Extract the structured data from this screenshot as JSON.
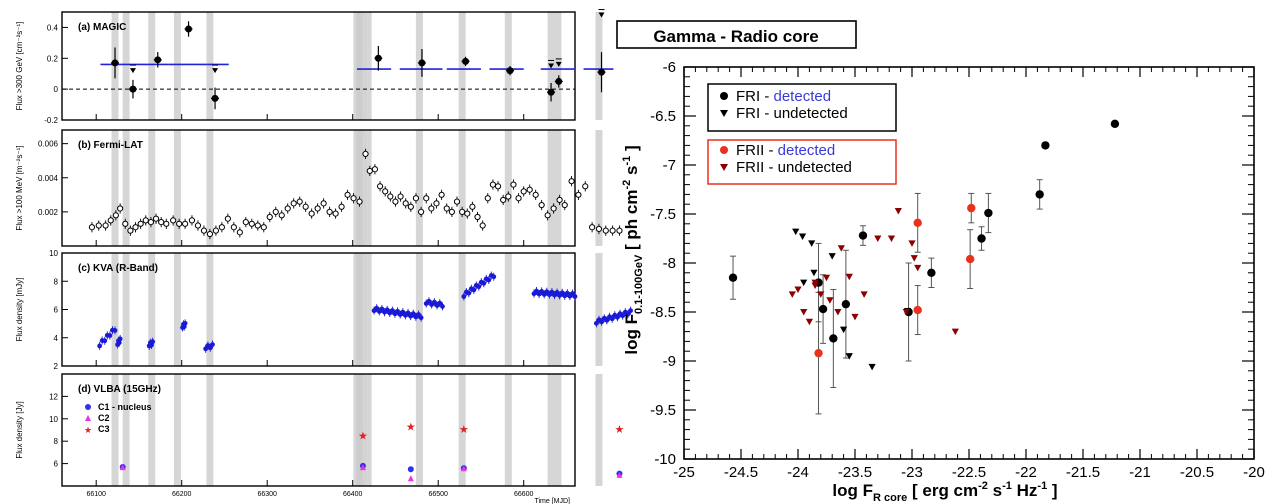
{
  "chart_data": [
    {
      "type": "scatter",
      "description_panels": "Multi-wavelength light curve",
      "x_axis": {
        "label": "Time [MJD]",
        "range": [
          66060,
          66660
        ],
        "ticks": [
          66100,
          66200,
          66300,
          66400,
          66500,
          66600
        ]
      },
      "panels": [
        {
          "title": "(a) MAGIC",
          "ylabel": "Flux >300 GeV [cm⁻²s⁻¹]",
          "ylim": [
            -0.2,
            0.5
          ],
          "yticks": [
            -0.2,
            0,
            0.2,
            0.4
          ],
          "yticklabels": [
            "-0.2",
            "0",
            "0.2",
            "0.4"
          ],
          "points": [
            {
              "x": 66122,
              "y": 0.17,
              "err": 0.1
            },
            {
              "x": 66143,
              "y": 0.0,
              "err": 0.06
            },
            {
              "x": 66172,
              "y": 0.19,
              "err": 0.05
            },
            {
              "x": 66208,
              "y": 0.39,
              "err": 0.05
            },
            {
              "x": 66239,
              "y": -0.06,
              "err": 0.07
            },
            {
              "x": 66430,
              "y": 0.2,
              "err": 0.08
            },
            {
              "x": 66481,
              "y": 0.17,
              "err": 0.09
            },
            {
              "x": 66532,
              "y": 0.18,
              "err": 0.03
            },
            {
              "x": 66584,
              "y": 0.12,
              "err": 0.03
            },
            {
              "x": 66632,
              "y": -0.02,
              "err": 0.06
            },
            {
              "x": 66641,
              "y": 0.05,
              "err": 0.04
            },
            {
              "x": 66691,
              "y": 0.11,
              "err": 0.13
            }
          ],
          "upper_limits": [
            {
              "x": 66143,
              "y": 0.13
            },
            {
              "x": 66239,
              "y": 0.13
            },
            {
              "x": 66632,
              "y": 0.16
            },
            {
              "x": 66641,
              "y": 0.17
            },
            {
              "x": 66691,
              "y": 0.49
            }
          ],
          "segments": [
            {
              "x0": 66105,
              "x1": 66130,
              "y": 0.16
            },
            {
              "x0": 66130,
              "x1": 66160,
              "y": 0.16
            },
            {
              "x0": 66160,
              "x1": 66185,
              "y": 0.16
            },
            {
              "x0": 66185,
              "x1": 66230,
              "y": 0.16
            },
            {
              "x0": 66230,
              "x1": 66255,
              "y": 0.16
            },
            {
              "x0": 66405,
              "x1": 66445,
              "y": 0.13
            },
            {
              "x0": 66455,
              "x1": 66505,
              "y": 0.13
            },
            {
              "x0": 66510,
              "x1": 66550,
              "y": 0.13
            },
            {
              "x0": 66560,
              "x1": 66600,
              "y": 0.13
            },
            {
              "x0": 66620,
              "x1": 66660,
              "y": 0.13
            },
            {
              "x0": 66670,
              "x1": 66705,
              "y": 0.13
            }
          ]
        },
        {
          "title": "(b) Fermi-LAT",
          "ylabel": "Flux >100 MeV [m⁻²s⁻¹]",
          "ylim": [
            0,
            0.0068
          ],
          "yticks": [
            0.002,
            0.004,
            0.006
          ],
          "yticklabels": [
            "0.002",
            "0.004",
            "0.006"
          ],
          "points_x": [
            66095,
            66103,
            66111,
            66117,
            66123,
            66128,
            66134,
            66140,
            66146,
            66152,
            66158,
            66164,
            66170,
            66176,
            66182,
            66190,
            66197,
            66204,
            66212,
            66219,
            66226,
            66233,
            66240,
            66247,
            66254,
            66261,
            66268,
            66275,
            66282,
            66289,
            66296,
            66303,
            66310,
            66317,
            66324,
            66331,
            66338,
            66345,
            66352,
            66359,
            66366,
            66373,
            66380,
            66387,
            66394,
            66401,
            66408,
            66415,
            66420,
            66426,
            66432,
            66438,
            66444,
            66450,
            66456,
            66462,
            66468,
            66474,
            66480,
            66486,
            66492,
            66498,
            66504,
            66510,
            66516,
            66522,
            66528,
            66534,
            66540,
            66546,
            66552,
            66558,
            66564,
            66570,
            66576,
            66582,
            66588,
            66594,
            66600,
            66607,
            66614,
            66621,
            66628,
            66635,
            66642,
            66648,
            66656,
            66664,
            66672,
            66680,
            66688,
            66696,
            66704,
            66712
          ],
          "points_y": [
            0.0011,
            0.0012,
            0.0012,
            0.0015,
            0.0018,
            0.0022,
            0.0013,
            0.0009,
            0.0011,
            0.0013,
            0.0015,
            0.0014,
            0.0016,
            0.0014,
            0.0013,
            0.0015,
            0.0013,
            0.0013,
            0.0015,
            0.0012,
            0.0009,
            0.0007,
            0.0009,
            0.0011,
            0.0016,
            0.0011,
            0.0008,
            0.0014,
            0.0013,
            0.0012,
            0.0011,
            0.0017,
            0.002,
            0.0018,
            0.0022,
            0.0025,
            0.0026,
            0.0023,
            0.0019,
            0.0022,
            0.0025,
            0.002,
            0.0019,
            0.0023,
            0.003,
            0.0028,
            0.0026,
            0.0054,
            0.0044,
            0.0045,
            0.0035,
            0.0032,
            0.0029,
            0.0026,
            0.0029,
            0.0025,
            0.0023,
            0.0028,
            0.002,
            0.0028,
            0.0022,
            0.0025,
            0.003,
            0.0022,
            0.002,
            0.0026,
            0.002,
            0.0019,
            0.0023,
            0.0017,
            0.0012,
            0.0028,
            0.0036,
            0.0035,
            0.0027,
            0.0029,
            0.0036,
            0.0028,
            0.0032,
            0.0033,
            0.003,
            0.0024,
            0.0018,
            0.0022,
            0.0027,
            0.0024,
            0.0038,
            0.003,
            0.0035,
            0.0011,
            0.001,
            0.0009,
            0.0009,
            0.0009
          ],
          "error": 0.0003
        },
        {
          "title": "(c) KVA (R-Band)",
          "ylabel": "Flux density [mJy]",
          "ylim": [
            2,
            10
          ],
          "yticks": [
            2,
            4,
            6,
            8,
            10
          ],
          "yticklabels": [
            "2",
            "4",
            "6",
            "8",
            "10"
          ],
          "groups": [
            {
              "x0": 66104,
              "x1": 66122,
              "y0": 3.5,
              "y1": 4.6
            },
            {
              "x0": 66125,
              "x1": 66128,
              "y0": 3.6,
              "y1": 3.8
            },
            {
              "x0": 66162,
              "x1": 66166,
              "y0": 3.5,
              "y1": 3.6
            },
            {
              "x0": 66201,
              "x1": 66204,
              "y0": 4.8,
              "y1": 4.9
            },
            {
              "x0": 66228,
              "x1": 66236,
              "y0": 3.3,
              "y1": 3.4
            },
            {
              "x0": 66425,
              "x1": 66480,
              "y0": 6.0,
              "y1": 5.5
            },
            {
              "x0": 66486,
              "x1": 66505,
              "y0": 6.5,
              "y1": 6.3
            },
            {
              "x0": 66530,
              "x1": 66565,
              "y0": 7.0,
              "y1": 8.4
            },
            {
              "x0": 66612,
              "x1": 66660,
              "y0": 7.2,
              "y1": 7.0
            },
            {
              "x0": 66685,
              "x1": 66725,
              "y0": 5.1,
              "y1": 5.8
            }
          ]
        },
        {
          "title": "(d) VLBA (15GHz)",
          "ylabel": "Flux density [Jy]",
          "ylim": [
            4,
            14
          ],
          "yticks": [
            6,
            8,
            10,
            12
          ],
          "yticklabels": [
            "6",
            "8",
            "10",
            "12"
          ],
          "legend": [
            "C1 - nucleus",
            "C2",
            "C3"
          ],
          "colors": {
            "C1": "#2f2ff0",
            "C2": "#e832e8",
            "C3": "#e02020"
          },
          "C1": [
            [
              66131,
              5.7
            ],
            [
              66412,
              5.8
            ],
            [
              66468,
              5.5
            ],
            [
              66530,
              5.6
            ],
            [
              66712,
              5.1
            ]
          ],
          "C2": [
            [
              66131,
              5.6
            ],
            [
              66412,
              5.6
            ],
            [
              66468,
              4.6
            ],
            [
              66530,
              5.5
            ],
            [
              66712,
              4.9
            ]
          ],
          "C3": [
            [
              66412,
              8.5
            ],
            [
              66468,
              9.3
            ],
            [
              66530,
              9.1
            ],
            [
              66712,
              9.1
            ]
          ]
        }
      ],
      "shaded_x": [
        66122,
        66135,
        66165,
        66195,
        66233,
        66405,
        66408,
        66411,
        66418,
        66478,
        66528,
        66582,
        66632,
        66640,
        66688
      ]
    },
    {
      "type": "scatter",
      "title": "Gamma - Radio core",
      "xlabel": "log F",
      "xlabel_sub": "R core",
      "xlabel_units": "[ erg cm",
      "xlabel_units_rest": "s",
      "xlabel_units_tail": "Hz",
      "xlabel_close": "]",
      "ylabel": "log F",
      "ylabel_sub": "0.1-100GeV",
      "ylabel_units": "[ ph cm",
      "ylabel_units_rest": "s",
      "ylabel_close": "]",
      "xlim": [
        -25,
        -20
      ],
      "ylim": [
        -10,
        -6
      ],
      "xticks": [
        -25,
        -24.5,
        -24,
        -23.5,
        -23,
        -22.5,
        -22,
        -21.5,
        -21,
        -20.5,
        -20
      ],
      "xticklabels": [
        "-25",
        "-24.5",
        "-24",
        "-23.5",
        "-23",
        "-22.5",
        "-22",
        "-21.5",
        "-21",
        "-20.5",
        "-20"
      ],
      "yticks": [
        -10,
        -9.5,
        -9,
        -8.5,
        -8,
        -7.5,
        -7,
        -6.5,
        -6
      ],
      "yticklabels": [
        "-10",
        "-9.5",
        "-9",
        "-8.5",
        "-8",
        "-7.5",
        "-7",
        "-6.5",
        "-6"
      ],
      "legend_groups": [
        {
          "items": [
            {
              "label": "FRI - ",
              "label_colored": "detected",
              "marker": "circle",
              "color": "#000000"
            },
            {
              "label": "FRI - undetected",
              "label_colored": "",
              "marker": "triangle",
              "color": "#000000"
            }
          ]
        },
        {
          "items": [
            {
              "label": "FRII - ",
              "label_colored": "detected",
              "marker": "circle",
              "color": "#e8321e"
            },
            {
              "label": "FRII - undetected",
              "label_colored": "",
              "marker": "triangle",
              "color": "#8b0000"
            }
          ]
        }
      ],
      "series": [
        {
          "name": "FRI - detected",
          "marker": "circle",
          "color": "#000000",
          "points": [
            [
              -24.57,
              -8.15,
              0.22
            ],
            [
              -23.82,
              -8.2,
              0.4
            ],
            [
              -23.78,
              -8.47,
              0.35
            ],
            [
              -23.69,
              -8.77,
              0.5
            ],
            [
              -23.58,
              -8.42,
              0.55
            ],
            [
              -23.43,
              -7.72,
              0.1
            ],
            [
              -23.03,
              -8.5,
              0.5
            ],
            [
              -22.83,
              -8.1,
              0.15
            ],
            [
              -22.39,
              -7.75,
              0.12
            ],
            [
              -22.33,
              -7.49,
              0.2
            ],
            [
              -21.88,
              -7.3,
              0.15
            ],
            [
              -21.83,
              -6.8,
              0.0
            ],
            [
              -21.22,
              -6.58,
              0.0
            ]
          ]
        },
        {
          "name": "FRI - undetected",
          "marker": "triangle",
          "color": "#000000",
          "points": [
            [
              -24.02,
              -7.68
            ],
            [
              -23.96,
              -7.73
            ],
            [
              -23.88,
              -7.8
            ],
            [
              -23.7,
              -7.93
            ],
            [
              -23.86,
              -8.1
            ],
            [
              -23.6,
              -8.68
            ],
            [
              -23.55,
              -8.95
            ],
            [
              -23.35,
              -9.06
            ],
            [
              -23.04,
              -8.49
            ],
            [
              -23.95,
              -8.2
            ]
          ]
        },
        {
          "name": "FRII - detected",
          "marker": "circle",
          "color": "#e8321e",
          "points": [
            [
              -23.82,
              -8.92,
              0.62
            ],
            [
              -22.95,
              -7.59,
              0.3
            ],
            [
              -22.95,
              -8.48,
              0.25
            ],
            [
              -22.48,
              -7.44,
              0.15
            ],
            [
              -22.49,
              -7.96,
              0.3
            ]
          ]
        },
        {
          "name": "FRII - undetected",
          "marker": "triangle",
          "color": "#8b0000",
          "points": [
            [
              -24.05,
              -8.32
            ],
            [
              -24.0,
              -8.27
            ],
            [
              -23.95,
              -8.5
            ],
            [
              -23.9,
              -8.6
            ],
            [
              -23.85,
              -8.23
            ],
            [
              -23.8,
              -8.32
            ],
            [
              -23.75,
              -8.15
            ],
            [
              -23.72,
              -8.38
            ],
            [
              -23.65,
              -8.5
            ],
            [
              -23.62,
              -7.85
            ],
            [
              -23.55,
              -8.14
            ],
            [
              -23.5,
              -8.55
            ],
            [
              -23.42,
              -8.32
            ],
            [
              -23.3,
              -7.75
            ],
            [
              -23.18,
              -7.75
            ],
            [
              -23.12,
              -7.47
            ],
            [
              -23.05,
              -8.5
            ],
            [
              -23.0,
              -7.8
            ],
            [
              -22.98,
              -7.95
            ],
            [
              -22.95,
              -8.05
            ],
            [
              -22.62,
              -8.7
            ],
            [
              -23.85,
              -8.2
            ]
          ]
        }
      ]
    }
  ]
}
